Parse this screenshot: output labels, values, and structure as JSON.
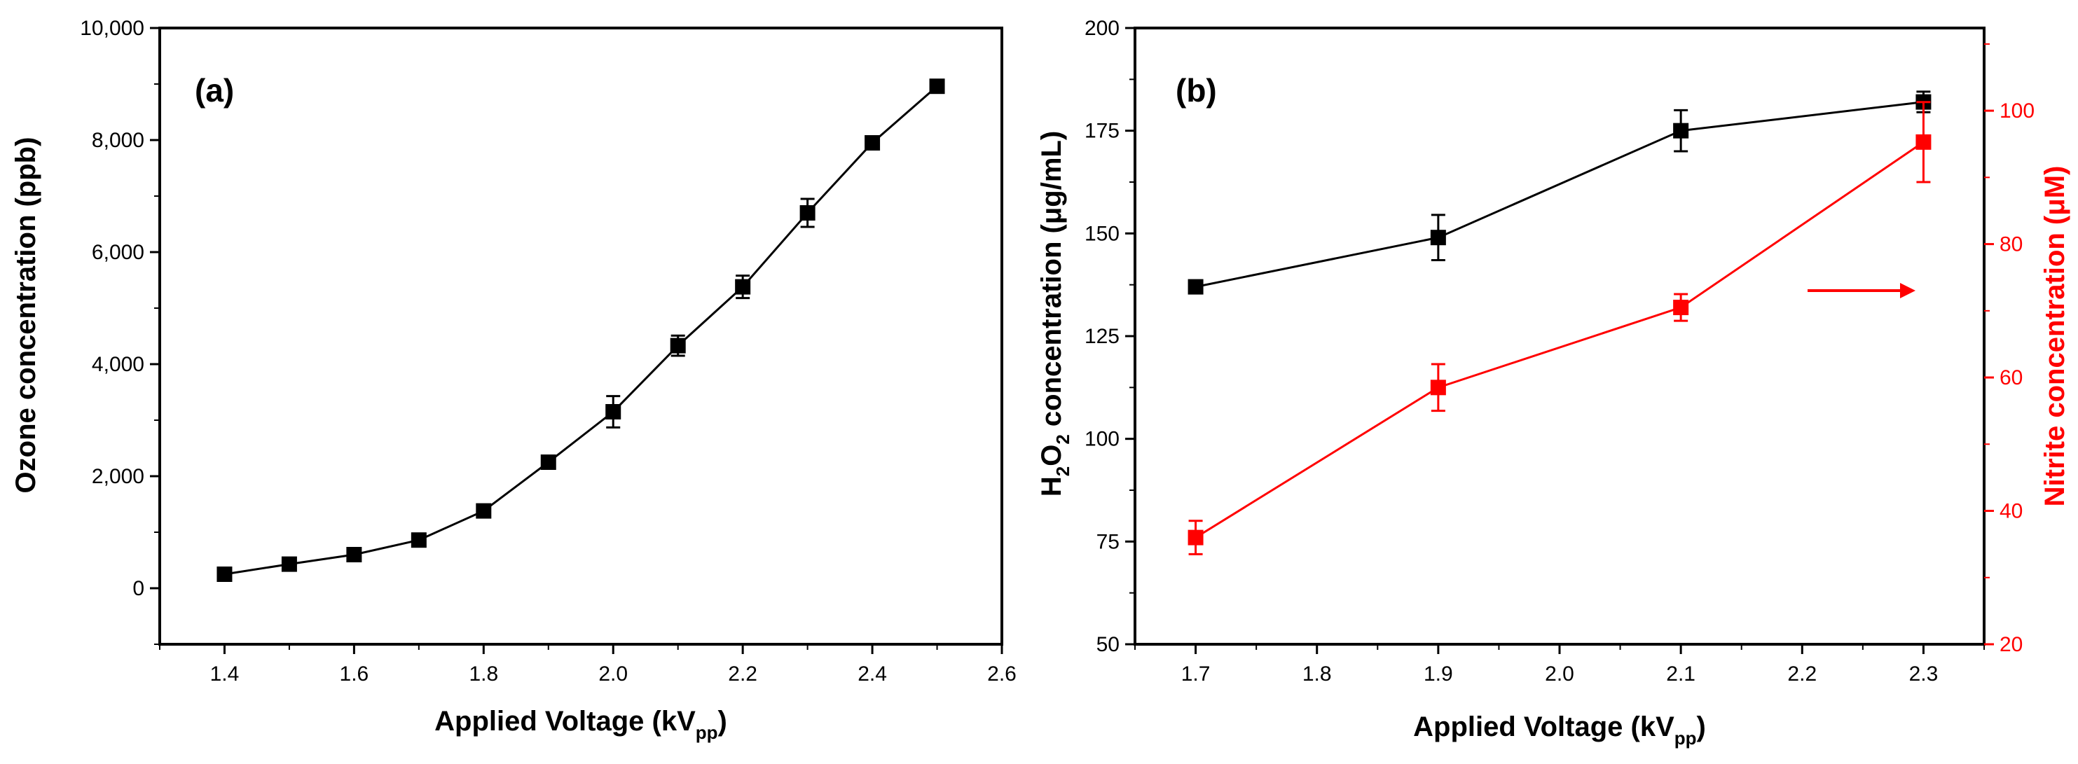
{
  "chart_data": [
    {
      "type": "line",
      "panel_label": "(a)",
      "xlabel": "Applied Voltage (kV",
      "xlabel_sub": "pp",
      "xlabel_close": ")",
      "ylabel": "Ozone concentration (ppb)",
      "xlim": [
        1.3,
        2.6
      ],
      "ylim": [
        -1000,
        10000
      ],
      "xticks": [
        1.4,
        1.6,
        1.8,
        2.0,
        2.2,
        2.4,
        2.6
      ],
      "xtick_labels": [
        "1.4",
        "1.6",
        "1.8",
        "2.0",
        "2.2",
        "2.4",
        "2.6"
      ],
      "yticks": [
        0,
        2000,
        4000,
        6000,
        8000,
        10000
      ],
      "ytick_labels": [
        "0",
        "2,000",
        "4,000",
        "6,000",
        "8,000",
        "10,000"
      ],
      "series": [
        {
          "name": "Ozone",
          "color": "#000000",
          "x": [
            1.4,
            1.5,
            1.6,
            1.7,
            1.8,
            1.9,
            2.0,
            2.1,
            2.2,
            2.3,
            2.4,
            2.5
          ],
          "values": [
            250,
            430,
            600,
            860,
            1380,
            2250,
            3150,
            4330,
            5380,
            6700,
            7950,
            8960
          ],
          "errors": [
            60,
            60,
            60,
            60,
            80,
            60,
            280,
            180,
            200,
            250,
            100,
            100
          ]
        }
      ]
    },
    {
      "type": "line",
      "panel_label": "(b)",
      "xlabel": "Applied Voltage (kV",
      "xlabel_sub": "pp",
      "xlabel_close": ")",
      "ylabel_left_pre": "H",
      "ylabel_left_sub1": "2",
      "ylabel_left_mid": "O",
      "ylabel_left_sub2": "2",
      "ylabel_left_post": " concentration (μg/mL)",
      "ylabel_right": "Nitrite concentration (μM)",
      "xlim": [
        1.65,
        2.35
      ],
      "ylim_left": [
        50,
        200
      ],
      "ylim_right": [
        20,
        112.4
      ],
      "xticks": [
        1.7,
        1.8,
        1.9,
        2.0,
        2.1,
        2.2,
        2.3
      ],
      "xtick_labels": [
        "1.7",
        "1.8",
        "1.9",
        "2.0",
        "2.1",
        "2.2",
        "2.3"
      ],
      "yticks_left": [
        50,
        75,
        100,
        125,
        150,
        175,
        200
      ],
      "ytick_labels_left": [
        "50",
        "75",
        "100",
        "125",
        "150",
        "175",
        "200"
      ],
      "yticks_right": [
        20,
        40,
        60,
        80,
        100
      ],
      "ytick_labels_right": [
        "20",
        "40",
        "60",
        "80",
        "100"
      ],
      "series": [
        {
          "name": "H2O2",
          "axis": "left",
          "color": "#000000",
          "x": [
            1.7,
            1.9,
            2.1,
            2.3
          ],
          "values": [
            137,
            149,
            175,
            182
          ],
          "errors": [
            1.5,
            5.5,
            5,
            2.5
          ]
        },
        {
          "name": "Nitrite",
          "axis": "right",
          "color": "#ff0000",
          "x": [
            1.7,
            1.9,
            2.1,
            2.3
          ],
          "values": [
            36,
            58.5,
            70.5,
            95.3
          ],
          "errors": [
            2.5,
            3.5,
            2,
            6
          ]
        }
      ],
      "annotation": "arrow pointing right toward the right (Nitrite) axis"
    }
  ]
}
